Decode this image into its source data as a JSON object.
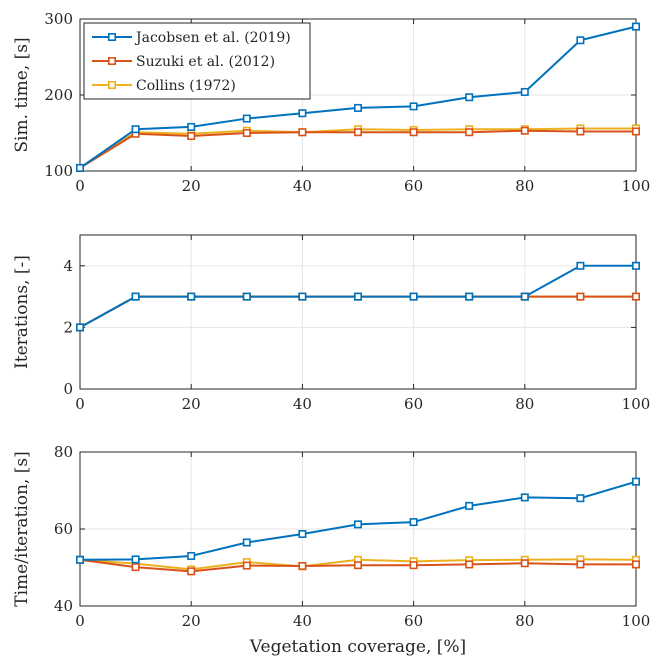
{
  "figure": {
    "xlabel": "Vegetation coverage, [%]"
  },
  "legend": {
    "placement": "top-left of first panel",
    "entries": [
      "Jacobsen et al. (2019)",
      "Suzuki et al. (2012)",
      "Collins (1972)"
    ]
  },
  "colors": {
    "Jacobsen et al. (2019)": "#0072BD",
    "Suzuki et al. (2012)": "#D95319",
    "Collins (1972)": "#EDB120",
    "grid": "#e6e6e6",
    "axis": "#262626"
  },
  "chart_data": [
    {
      "type": "line",
      "ylabel": "Sim. time, [s]",
      "xlim": [
        0,
        100
      ],
      "ylim": [
        100,
        300
      ],
      "xticks": [
        0,
        20,
        40,
        60,
        80,
        100
      ],
      "yticks": [
        100,
        200,
        300
      ],
      "grid": true,
      "legend": "top-left",
      "x": [
        0,
        10,
        20,
        30,
        40,
        50,
        60,
        70,
        80,
        90,
        100
      ],
      "series": [
        {
          "name": "Jacobsen et al. (2019)",
          "values": [
            104,
            155,
            158,
            169,
            176,
            183,
            185,
            197,
            204,
            272,
            290
          ]
        },
        {
          "name": "Suzuki et al. (2012)",
          "values": [
            104,
            149,
            146,
            150,
            151,
            151,
            151,
            151,
            153,
            152,
            152
          ]
        },
        {
          "name": "Collins (1972)",
          "values": [
            104,
            151,
            149,
            153,
            151,
            155,
            154,
            155,
            155,
            156,
            156
          ]
        }
      ]
    },
    {
      "type": "line",
      "ylabel": "Iterations, [-]",
      "xlim": [
        0,
        100
      ],
      "ylim": [
        0,
        5
      ],
      "xticks": [
        0,
        20,
        40,
        60,
        80,
        100
      ],
      "yticks": [
        0,
        2,
        4
      ],
      "grid": true,
      "x": [
        0,
        10,
        20,
        30,
        40,
        50,
        60,
        70,
        80,
        90,
        100
      ],
      "series": [
        {
          "name": "Jacobsen et al. (2019)",
          "values": [
            2,
            3,
            3,
            3,
            3,
            3,
            3,
            3,
            3,
            4,
            4
          ]
        },
        {
          "name": "Suzuki et al. (2012)",
          "values": [
            2,
            3,
            3,
            3,
            3,
            3,
            3,
            3,
            3,
            3,
            3
          ]
        },
        {
          "name": "Collins (1972)",
          "values": [
            2,
            3,
            3,
            3,
            3,
            3,
            3,
            3,
            3,
            3,
            3
          ]
        }
      ]
    },
    {
      "type": "line",
      "ylabel": "Time/iteration, [s]",
      "xlabel": "Vegetation coverage, [%]",
      "xlim": [
        0,
        100
      ],
      "ylim": [
        40,
        80
      ],
      "xticks": [
        0,
        20,
        40,
        60,
        80,
        100
      ],
      "yticks": [
        40,
        60,
        80
      ],
      "grid": true,
      "x": [
        0,
        10,
        20,
        30,
        40,
        50,
        60,
        70,
        80,
        90,
        100
      ],
      "series": [
        {
          "name": "Jacobsen et al. (2019)",
          "values": [
            52,
            52.1,
            53,
            56.5,
            58.7,
            61.2,
            61.8,
            66,
            68.2,
            68,
            72.3
          ]
        },
        {
          "name": "Suzuki et al. (2012)",
          "values": [
            52,
            50.1,
            49,
            50.5,
            50.4,
            50.6,
            50.6,
            50.8,
            51.1,
            50.8,
            50.8
          ]
        },
        {
          "name": "Collins (1972)",
          "values": [
            52,
            51,
            49.5,
            51.4,
            50.3,
            52,
            51.6,
            51.9,
            52,
            52.1,
            52
          ]
        }
      ]
    }
  ]
}
